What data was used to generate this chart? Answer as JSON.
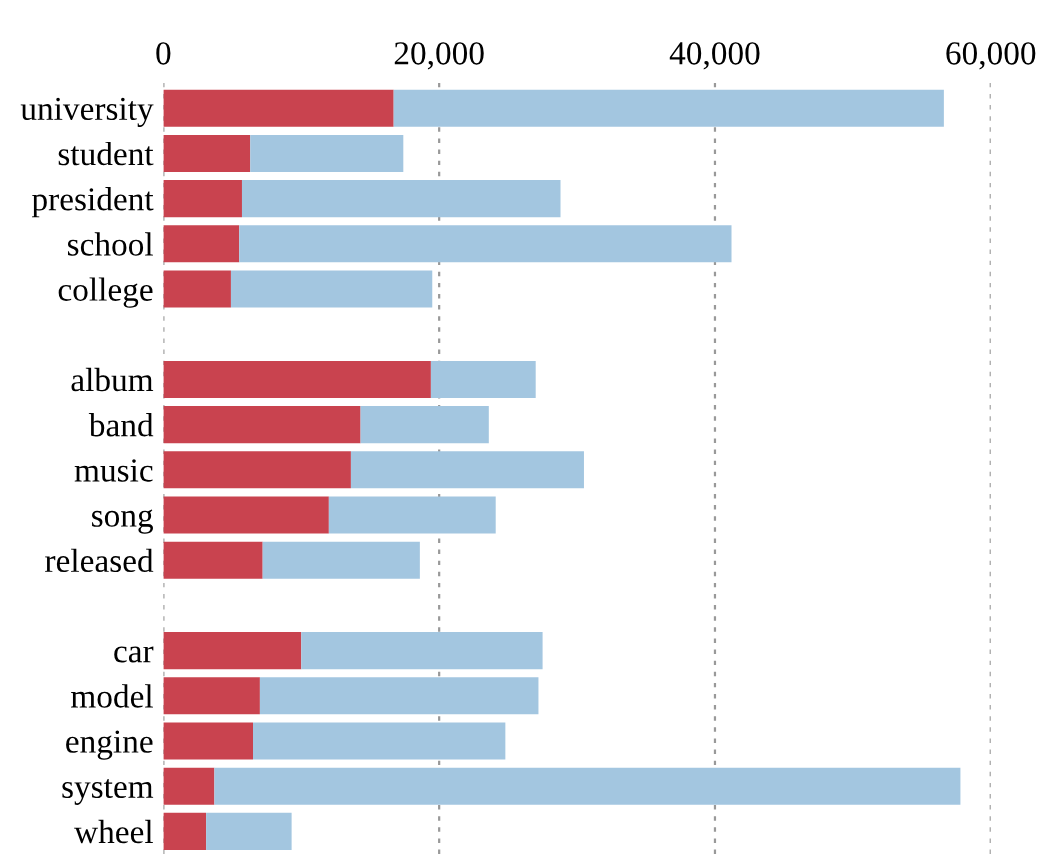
{
  "chart_data": {
    "type": "bar",
    "orientation": "horizontal",
    "stacked": true,
    "categories": [
      "university",
      "student",
      "president",
      "school",
      "college",
      null,
      "album",
      "band",
      "music",
      "song",
      "released",
      null,
      "car",
      "model",
      "engine",
      "system",
      "wheel"
    ],
    "series": [
      {
        "color": "#c9434f",
        "values": [
          16700,
          6300,
          5700,
          5500,
          4900,
          null,
          19400,
          14300,
          13600,
          12000,
          7200,
          null,
          10000,
          7000,
          6500,
          3700,
          3100
        ]
      },
      {
        "color": "#a3c6e0",
        "values": [
          39900,
          11100,
          23100,
          35700,
          14600,
          null,
          7600,
          9300,
          16900,
          12100,
          11400,
          null,
          17500,
          20200,
          18300,
          54100,
          6200
        ]
      }
    ],
    "xlim": [
      0,
      60000
    ],
    "xticks": [
      0,
      {
        "value": 20000,
        "label": "20,000"
      },
      {
        "value": 40000,
        "label": "40,000"
      },
      {
        "value": 60000,
        "label": "60,000"
      }
    ],
    "grid": "x"
  }
}
